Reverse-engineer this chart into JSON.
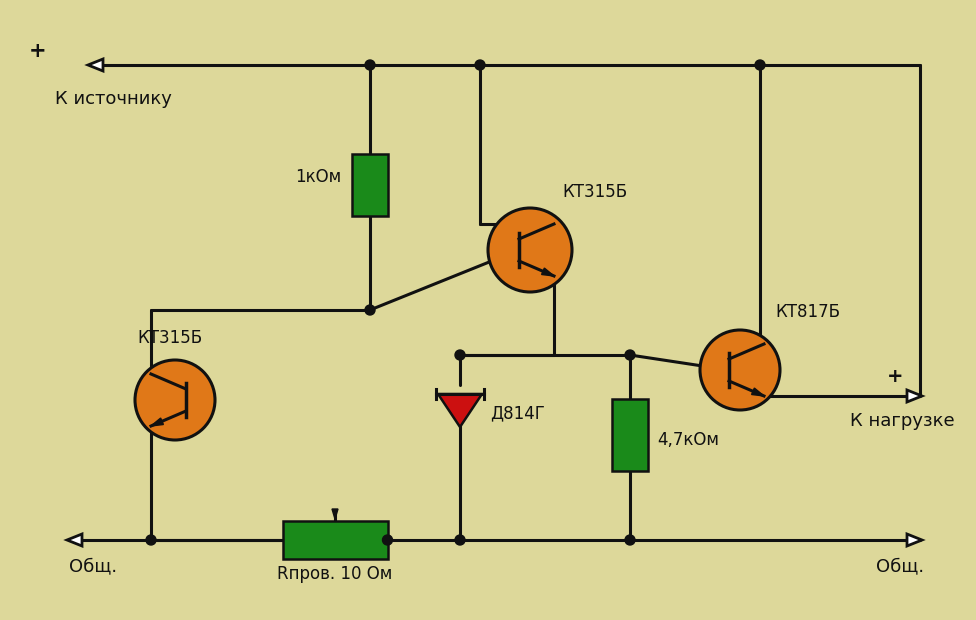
{
  "bg_color": "#ddd89a",
  "line_color": "#111111",
  "green_color": "#1a8a1a",
  "orange_color": "#e07818",
  "red_color": "#cc1010",
  "white_color": "#ffffff",
  "labels": {
    "r1_label": "1кОм",
    "r2_label": "4,7кОм",
    "r3_label": "Rпров. 10 Ом",
    "t1_label": "КТ315Б",
    "t2_label": "КТ315Б",
    "t3_label": "КТ817Б",
    "d1_label": "Д814Г",
    "plus_top": "+",
    "k_istochniku": "К источнику",
    "plus_right": "+",
    "k_nagruzke": "К нагрузке",
    "obsh_left": "Общ.",
    "obsh_right": "Общ."
  }
}
